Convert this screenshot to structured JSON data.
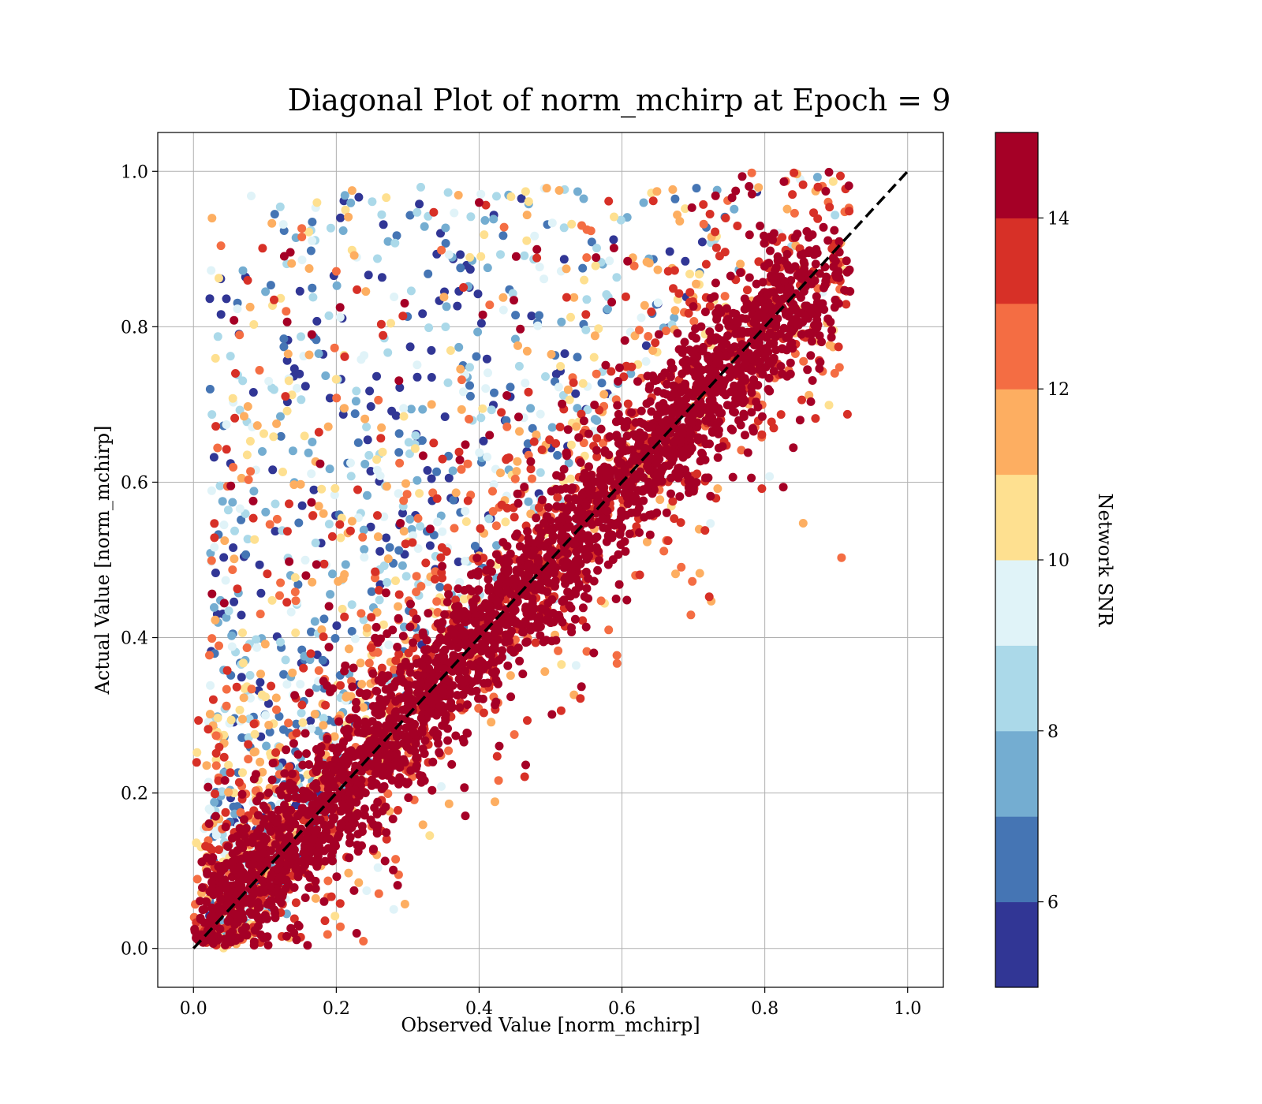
{
  "chart_data": {
    "type": "scatter",
    "title": "Diagonal Plot of norm_mchirp at Epoch = 9",
    "xlabel": "Observed Value [norm_mchirp]",
    "ylabel": "Actual Value [norm_mchirp]",
    "xlim": [
      -0.05,
      1.05
    ],
    "ylim": [
      -0.05,
      1.05
    ],
    "xticks": [
      "0.0",
      "0.2",
      "0.4",
      "0.6",
      "0.8",
      "1.0"
    ],
    "yticks": [
      "0.0",
      "0.2",
      "0.4",
      "0.6",
      "0.8",
      "1.0"
    ],
    "grid": true,
    "reference_line": {
      "style": "dashed",
      "color": "#000000",
      "from": [
        0,
        0
      ],
      "to": [
        1,
        1
      ]
    },
    "colorbar": {
      "label": "Network SNR",
      "range": [
        5,
        15
      ],
      "ticks": [
        "6",
        "8",
        "10",
        "12",
        "14"
      ],
      "colors": [
        "#313695",
        "#4575b4",
        "#74add1",
        "#abd9e9",
        "#e0f3f8",
        "#fee090",
        "#fdae61",
        "#f46d43",
        "#d73027",
        "#a50026"
      ]
    },
    "point_count_estimate": 5000
  }
}
